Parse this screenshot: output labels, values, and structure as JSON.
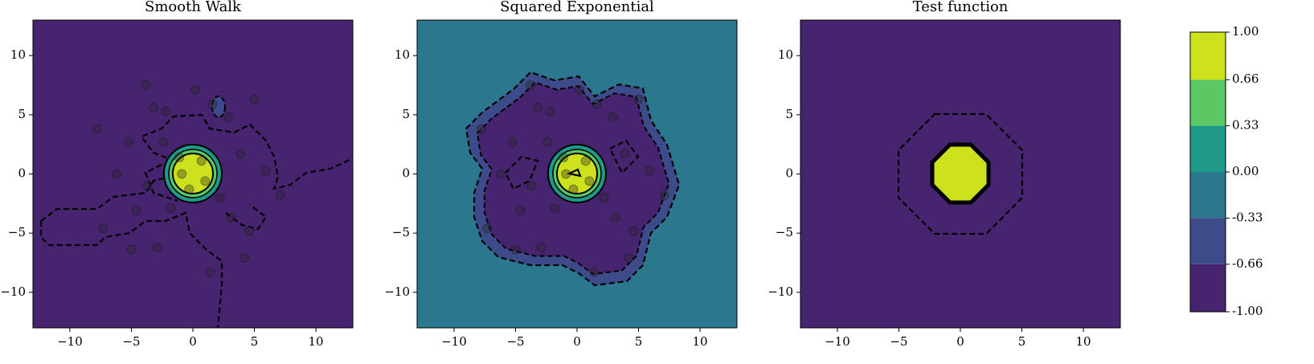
{
  "chart_data": [
    {
      "type": "contour",
      "title": "Smooth Walk",
      "background": "#46246f",
      "xlim": [
        -13,
        13
      ],
      "ylim": [
        -13,
        13
      ],
      "xticks": [
        {
          "value": -10,
          "label": "−10"
        },
        {
          "value": -5,
          "label": "−5"
        },
        0,
        5,
        10
      ],
      "yticks": [
        {
          "value": -10,
          "label": "−10"
        },
        {
          "value": -5,
          "label": "−5"
        },
        0,
        5,
        10
      ],
      "points": {
        "x": [
          -3.8,
          0.2,
          -7.8,
          5,
          -3.2,
          -2.2,
          -5.2,
          -6.2,
          -7.3,
          -5,
          -2.9,
          1.4,
          4.2,
          4.6,
          7.1,
          5.9,
          3.9,
          2.9,
          1.6,
          -3.7,
          -4.6,
          -1.8,
          2.2,
          3.1,
          -0.9,
          0.7,
          -0.3,
          1,
          -1.1,
          -2.4
        ],
        "y": [
          7.5,
          7.1,
          3.8,
          6.3,
          5.6,
          5.3,
          2.7,
          0,
          -4.6,
          -6.4,
          -6.2,
          -8.3,
          -7.1,
          -4.8,
          -1.8,
          0.3,
          1.7,
          4.8,
          5.9,
          -1,
          -3.1,
          -2.9,
          -2,
          -3.7,
          0,
          1.1,
          -1.3,
          -0.6,
          1.4,
          2.7
        ]
      }
    },
    {
      "type": "contour",
      "title": "Squared Exponential",
      "background": "#2b788e",
      "xlim": [
        -13,
        13
      ],
      "ylim": [
        -13,
        13
      ],
      "xticks": [
        {
          "value": -10,
          "label": "−10"
        },
        {
          "value": -5,
          "label": "−5"
        },
        0,
        5,
        10
      ],
      "yticks": [
        {
          "value": -10,
          "label": "−10"
        },
        {
          "value": -5,
          "label": "−5"
        },
        0,
        5,
        10
      ],
      "points": {
        "x": [
          -3.8,
          0.2,
          -7.8,
          5,
          -3.2,
          -2.2,
          -5.2,
          -6.2,
          -7.3,
          -5,
          -2.9,
          1.4,
          4.2,
          4.6,
          7.1,
          5.9,
          3.9,
          2.9,
          1.6,
          -3.7,
          -4.6,
          -1.8,
          2.2,
          3.1,
          -0.9,
          0.7,
          -0.3,
          1,
          -1.1,
          -2.4
        ],
        "y": [
          7.5,
          7.1,
          3.8,
          6.3,
          5.6,
          5.3,
          2.7,
          0,
          -4.6,
          -6.4,
          -6.2,
          -8.3,
          -7.1,
          -4.8,
          -1.8,
          0.3,
          1.7,
          4.8,
          5.9,
          -1,
          -3.1,
          -2.9,
          -2,
          -3.7,
          0,
          1.1,
          -1.3,
          -0.6,
          1.4,
          2.7
        ]
      }
    },
    {
      "type": "contour",
      "title": "Test function",
      "background": "#46246f",
      "xlim": [
        -13,
        13
      ],
      "ylim": [
        -13,
        13
      ],
      "xticks": [
        {
          "value": -10,
          "label": "−10"
        },
        {
          "value": -5,
          "label": "−5"
        },
        0,
        5,
        10
      ],
      "yticks": [
        {
          "value": -10,
          "label": "−10"
        },
        {
          "value": -5,
          "label": "−5"
        },
        0,
        5,
        10
      ]
    },
    {
      "type": "colorbar",
      "ylim": [
        -1,
        1
      ],
      "levels": [
        -1,
        -0.66,
        -0.33,
        0,
        0.33,
        0.66,
        1
      ],
      "colors": [
        "#46246f",
        "#3e4b8a",
        "#2b788e",
        "#1f9a8a",
        "#5cc863",
        "#cde11d"
      ],
      "yticks": [
        {
          "value": -1,
          "label": "-1.00"
        },
        {
          "value": -0.66,
          "label": "-0.66"
        },
        {
          "value": -0.33,
          "label": "-0.33"
        },
        {
          "value": 0,
          "label": "0.00"
        },
        {
          "value": 0.33,
          "label": "0.33"
        },
        {
          "value": 0.66,
          "label": "0.66"
        },
        {
          "value": 1,
          "label": "1.00"
        }
      ]
    }
  ]
}
